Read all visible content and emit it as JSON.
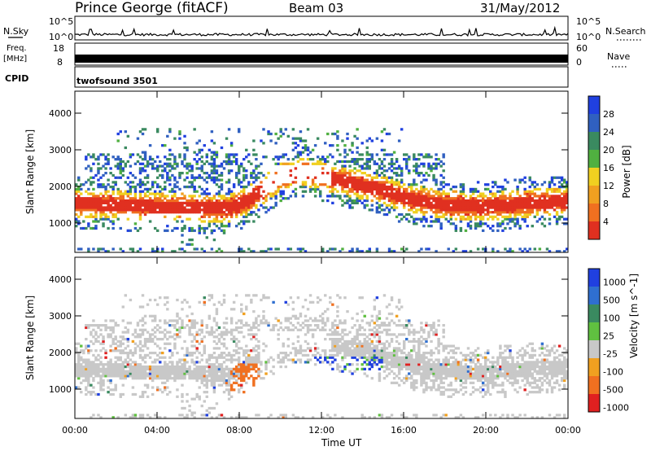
{
  "header": {
    "station": "Prince George (fitACF)",
    "beam": "Beam 03",
    "date": "31/May/2012"
  },
  "panels_top": {
    "nsky_label": "N.Sky",
    "nsky_ticks": [
      "10^5",
      "10^0"
    ],
    "nsearch_label": "N.Search",
    "nsearch_ticks": [
      "10^5",
      "10^0"
    ],
    "freq_label_1": "Freq.",
    "freq_label_2": "[MHz]",
    "freq_ticks": [
      "18",
      "8"
    ],
    "nave_label": "Nave",
    "nave_ticks": [
      "60",
      "0"
    ],
    "cpid_label": "CPID",
    "cpid_value": "twofsound 3501"
  },
  "colors": {
    "power_scale": [
      "#2040e0",
      "#3060c0",
      "#3a8a60",
      "#50b040",
      "#f0d020",
      "#f0a020",
      "#f07020",
      "#e03020"
    ],
    "velocity_scale": [
      "#2040e0",
      "#2f6fd0",
      "#3a8a60",
      "#60c040",
      "#c8c8c8",
      "#f0a020",
      "#f07020",
      "#e02020"
    ],
    "ground_scatter": "#c8c8c8"
  },
  "chart_data": [
    {
      "type": "heatmap",
      "name_field": "Power",
      "colorbar_label": "Power [dB]",
      "colorbar_ticks": [
        "28",
        "24",
        "20",
        "16",
        "12",
        "8",
        "4"
      ],
      "ylabel": "Slant Range [km]",
      "y_ticks": [
        "4000",
        "3000",
        "2000",
        "1000"
      ],
      "ylim": [
        200,
        4600
      ],
      "xlim": [
        0,
        24
      ],
      "x_ticks": [
        "00:00",
        "04:00",
        "08:00",
        "12:00",
        "16:00",
        "20:00",
        "00:00"
      ],
      "main_echo_band_km": [
        [
          0,
          1550
        ],
        [
          2,
          1500
        ],
        [
          4,
          1450
        ],
        [
          6,
          1420
        ],
        [
          7.5,
          1400
        ],
        [
          8.5,
          1650
        ],
        [
          10,
          2250
        ],
        [
          11,
          2400
        ],
        [
          12,
          2300
        ],
        [
          13.5,
          2100
        ],
        [
          15,
          1900
        ],
        [
          16,
          1700
        ],
        [
          18,
          1500
        ],
        [
          20,
          1450
        ],
        [
          22,
          1550
        ],
        [
          24,
          1600
        ]
      ]
    },
    {
      "type": "heatmap",
      "name_field": "Velocity",
      "colorbar_label": "Velocity [m s^-1]",
      "colorbar_ticks": [
        "1000",
        "500",
        "100",
        "25",
        "-25",
        "-100",
        "-500",
        "-1000"
      ],
      "ylabel": "Slant Range [km]",
      "y_ticks": [
        "4000",
        "3000",
        "2000",
        "1000"
      ],
      "ylim": [
        200,
        4600
      ],
      "xlim": [
        0,
        24
      ],
      "x_ticks": [
        "00:00",
        "04:00",
        "08:00",
        "12:00",
        "16:00",
        "20:00",
        "00:00"
      ],
      "xlabel": "Time UT"
    }
  ]
}
